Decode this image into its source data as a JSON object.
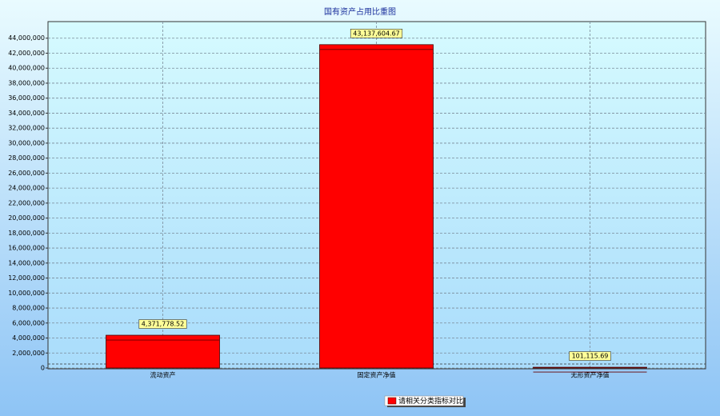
{
  "chart_data": {
    "type": "bar",
    "title": "国有资产占用比重图",
    "categories": [
      "流动资产",
      "固定资产净值",
      "无形资产净值"
    ],
    "series": [
      {
        "name": "请相关分类指标对比",
        "color": "#ff0000",
        "values": [
          4371778.52,
          43137604.67,
          101115.69
        ],
        "value_labels": [
          "4,371,778.52",
          "43,137,604.67",
          "101,115.69"
        ]
      }
    ],
    "ylim": [
      0,
      46000000
    ],
    "yticks": [
      {
        "value": 0,
        "label": "0"
      },
      {
        "value": 2000000,
        "label": "2,000,000"
      },
      {
        "value": 4000000,
        "label": "4,000,000"
      },
      {
        "value": 6000000,
        "label": "6,000,000"
      },
      {
        "value": 8000000,
        "label": "8,000,000"
      },
      {
        "value": 10000000,
        "label": "10,000,000"
      },
      {
        "value": 12000000,
        "label": "12,000,000"
      },
      {
        "value": 14000000,
        "label": "14,000,000"
      },
      {
        "value": 16000000,
        "label": "16,000,000"
      },
      {
        "value": 18000000,
        "label": "18,000,000"
      },
      {
        "value": 20000000,
        "label": "20,000,000"
      },
      {
        "value": 22000000,
        "label": "22,000,000"
      },
      {
        "value": 24000000,
        "label": "24,000,000"
      },
      {
        "value": 26000000,
        "label": "26,000,000"
      },
      {
        "value": 28000000,
        "label": "28,000,000"
      },
      {
        "value": 30000000,
        "label": "30,000,000"
      },
      {
        "value": 32000000,
        "label": "32,000,000"
      },
      {
        "value": 34000000,
        "label": "34,000,000"
      },
      {
        "value": 36000000,
        "label": "36,000,000"
      },
      {
        "value": 38000000,
        "label": "38,000,000"
      },
      {
        "value": 40000000,
        "label": "40,000,000"
      },
      {
        "value": 42000000,
        "label": "42,000,000"
      },
      {
        "value": 44000000,
        "label": "44,000,000"
      }
    ],
    "grid": true
  }
}
